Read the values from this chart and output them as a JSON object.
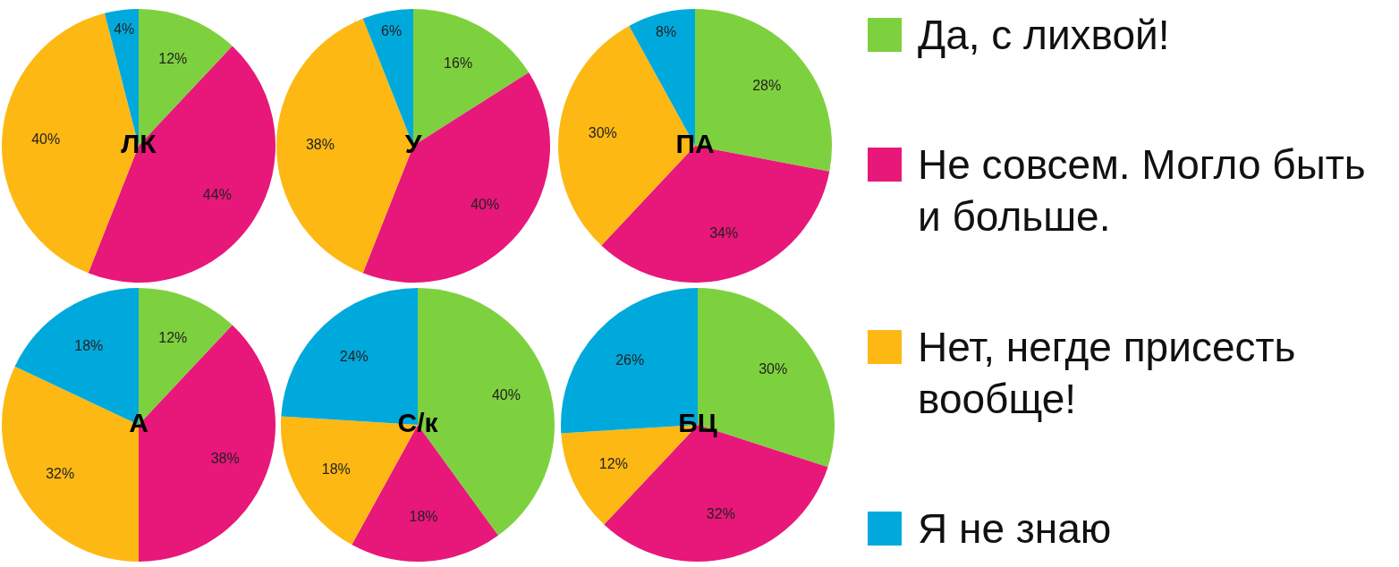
{
  "chart_data": [
    {
      "type": "pie",
      "title": "ЛК",
      "categories": [
        "Да, с лихвой!",
        "Не совсем. Могло быть и больше.",
        "Нет, негде присесть вообще!",
        "Я не знаю"
      ],
      "values": [
        12,
        44,
        40,
        4
      ],
      "value_labels": [
        "12%",
        "44%",
        "40%",
        "4%"
      ],
      "colors": [
        "#7ed13e",
        "#e8177a",
        "#fdb813",
        "#00a9dc"
      ],
      "legend": "right"
    },
    {
      "type": "pie",
      "title": "У",
      "categories": [
        null,
        null,
        null,
        null
      ],
      "values": [
        16,
        40,
        38,
        6
      ],
      "value_labels": [
        "16%",
        "40%",
        "38%",
        "6%"
      ],
      "colors": [
        "#7ed13e",
        "#e8177a",
        "#fdb813",
        "#00a9dc"
      ]
    },
    {
      "type": "pie",
      "title": "ПА",
      "categories": [
        null,
        null,
        null,
        null
      ],
      "values": [
        28,
        34,
        30,
        8
      ],
      "value_labels": [
        "28%",
        "34%",
        "30%",
        "8%"
      ],
      "colors": [
        "#7ed13e",
        "#e8177a",
        "#fdb813",
        "#00a9dc"
      ]
    },
    {
      "type": "pie",
      "title": "А",
      "categories": [
        null,
        null,
        null,
        null
      ],
      "values": [
        12,
        38,
        32,
        18
      ],
      "value_labels": [
        "12%",
        "38%",
        "32%",
        "18%"
      ],
      "colors": [
        "#7ed13e",
        "#e8177a",
        "#fdb813",
        "#00a9dc"
      ]
    },
    {
      "type": "pie",
      "title": "С/к",
      "categories": [
        null,
        null,
        null,
        null
      ],
      "values": [
        40,
        18,
        18,
        24
      ],
      "value_labels": [
        "40%",
        "18%",
        "18%",
        "24%"
      ],
      "colors": [
        "#7ed13e",
        "#e8177a",
        "#fdb813",
        "#00a9dc"
      ]
    },
    {
      "type": "pie",
      "title": "БЦ",
      "categories": [
        null,
        null,
        null,
        null
      ],
      "values": [
        30,
        32,
        12,
        26
      ],
      "value_labels": [
        "30%",
        "32%",
        "12%",
        "26%"
      ],
      "colors": [
        "#7ed13e",
        "#e8177a",
        "#fdb813",
        "#00a9dc"
      ]
    }
  ]
}
